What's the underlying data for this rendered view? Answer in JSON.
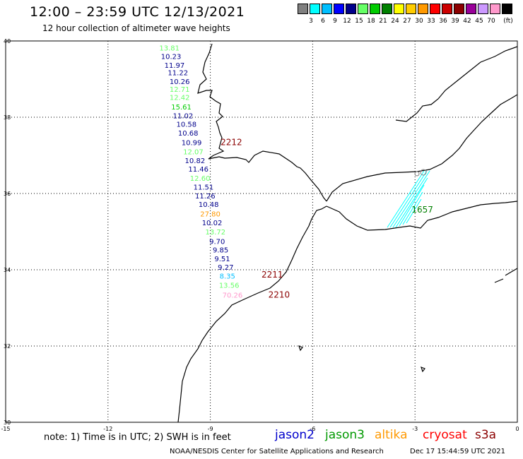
{
  "title": "12:00 – 23:59 UTC 12/13/2021",
  "subtitle": "12 hour collection of altimeter wave heights",
  "colorbar": {
    "colors": [
      "#808080",
      "#00ffff",
      "#00bfff",
      "#0000ff",
      "#00008b",
      "#66ff66",
      "#00cc00",
      "#008000",
      "#ffff00",
      "#ffcc00",
      "#ff9900",
      "#ff0000",
      "#cc0000",
      "#8b0000",
      "#990099",
      "#cc99ff",
      "#ff99cc",
      "#000000"
    ],
    "labels": [
      "3",
      "6",
      "9",
      "12",
      "15",
      "18",
      "21",
      "24",
      "27",
      "30",
      "33",
      "36",
      "39",
      "42",
      "45",
      "70"
    ],
    "unit": "(ft)"
  },
  "axes": {
    "lon_ticks": [
      "-15",
      "-12",
      "-9",
      "-6",
      "-3",
      "0"
    ],
    "lat_ticks": [
      "40",
      "38",
      "36",
      "34",
      "32",
      "30"
    ]
  },
  "track_values": [
    {
      "v": "13.81",
      "c": "#66ff66",
      "lon": -10.2,
      "lat": 39.75
    },
    {
      "v": "10.23",
      "c": "#00008b",
      "lon": -10.15,
      "lat": 39.53
    },
    {
      "v": "11.97",
      "c": "#00008b",
      "lon": -10.05,
      "lat": 39.3
    },
    {
      "v": "11.22",
      "c": "#00008b",
      "lon": -9.95,
      "lat": 39.1
    },
    {
      "v": "10.26",
      "c": "#00008b",
      "lon": -9.9,
      "lat": 38.87
    },
    {
      "v": "12.71",
      "c": "#66ff66",
      "lon": -9.9,
      "lat": 38.67
    },
    {
      "v": "12.42",
      "c": "#66ff66",
      "lon": -9.9,
      "lat": 38.45
    },
    {
      "v": "15.61",
      "c": "#00cc00",
      "lon": -9.85,
      "lat": 38.2
    },
    {
      "v": "11.02",
      "c": "#00008b",
      "lon": -9.8,
      "lat": 37.97
    },
    {
      "v": "10.58",
      "c": "#00008b",
      "lon": -9.7,
      "lat": 37.75
    },
    {
      "v": "10.68",
      "c": "#00008b",
      "lon": -9.65,
      "lat": 37.52
    },
    {
      "v": "10.99",
      "c": "#00008b",
      "lon": -9.55,
      "lat": 37.27
    },
    {
      "v": "12.07",
      "c": "#66ff66",
      "lon": -9.5,
      "lat": 37.03
    },
    {
      "v": "10.82",
      "c": "#00008b",
      "lon": -9.45,
      "lat": 36.8
    },
    {
      "v": "11.46",
      "c": "#00008b",
      "lon": -9.35,
      "lat": 36.57
    },
    {
      "v": "12.60",
      "c": "#66ff66",
      "lon": -9.3,
      "lat": 36.33
    },
    {
      "v": "11.51",
      "c": "#00008b",
      "lon": -9.2,
      "lat": 36.1
    },
    {
      "v": "11.26",
      "c": "#00008b",
      "lon": -9.15,
      "lat": 35.87
    },
    {
      "v": "10.48",
      "c": "#00008b",
      "lon": -9.05,
      "lat": 35.65
    },
    {
      "v": "27.80",
      "c": "#ff9900",
      "lon": -9.0,
      "lat": 35.4
    },
    {
      "v": "10.02",
      "c": "#00008b",
      "lon": -8.95,
      "lat": 35.17
    },
    {
      "v": "13.72",
      "c": "#66ff66",
      "lon": -8.85,
      "lat": 34.93
    },
    {
      "v": "9.70",
      "c": "#00008b",
      "lon": -8.8,
      "lat": 34.68
    },
    {
      "v": "9.85",
      "c": "#00008b",
      "lon": -8.7,
      "lat": 34.45
    },
    {
      "v": "9.51",
      "c": "#00008b",
      "lon": -8.65,
      "lat": 34.22
    },
    {
      "v": "9.27",
      "c": "#00008b",
      "lon": -8.55,
      "lat": 34.0
    },
    {
      "v": "8.35",
      "c": "#00bfff",
      "lon": -8.5,
      "lat": 33.77
    },
    {
      "v": "13.56",
      "c": "#66ff66",
      "lon": -8.45,
      "lat": 33.53
    },
    {
      "v": "70.26",
      "c": "#ff99cc",
      "lon": -8.35,
      "lat": 33.27
    }
  ],
  "pass_labels": [
    {
      "t": "2212",
      "c": "#8b0000",
      "lon": -8.7,
      "lat": 37.27
    },
    {
      "t": "2211",
      "c": "#8b0000",
      "lon": -7.5,
      "lat": 33.8
    },
    {
      "t": "2210",
      "c": "#8b0000",
      "lon": -7.3,
      "lat": 33.27
    },
    {
      "t": "1657",
      "c": "#008000",
      "lon": -3.1,
      "lat": 35.5
    }
  ],
  "note": "note: 1) Time is in UTC; 2) SWH is in feet",
  "satellites": [
    {
      "name": "jason2",
      "color": "#0000cc"
    },
    {
      "name": "jason3",
      "color": "#009900"
    },
    {
      "name": "altika",
      "color": "#ff9900"
    },
    {
      "name": "cryosat",
      "color": "#ff0000"
    },
    {
      "name": "s3a",
      "color": "#8b0000"
    }
  ],
  "credit": "NOAA/NESDIS Center for Satellite Applications and Research",
  "timestamp": "Dec 17 15:44:59 UTC 2021"
}
